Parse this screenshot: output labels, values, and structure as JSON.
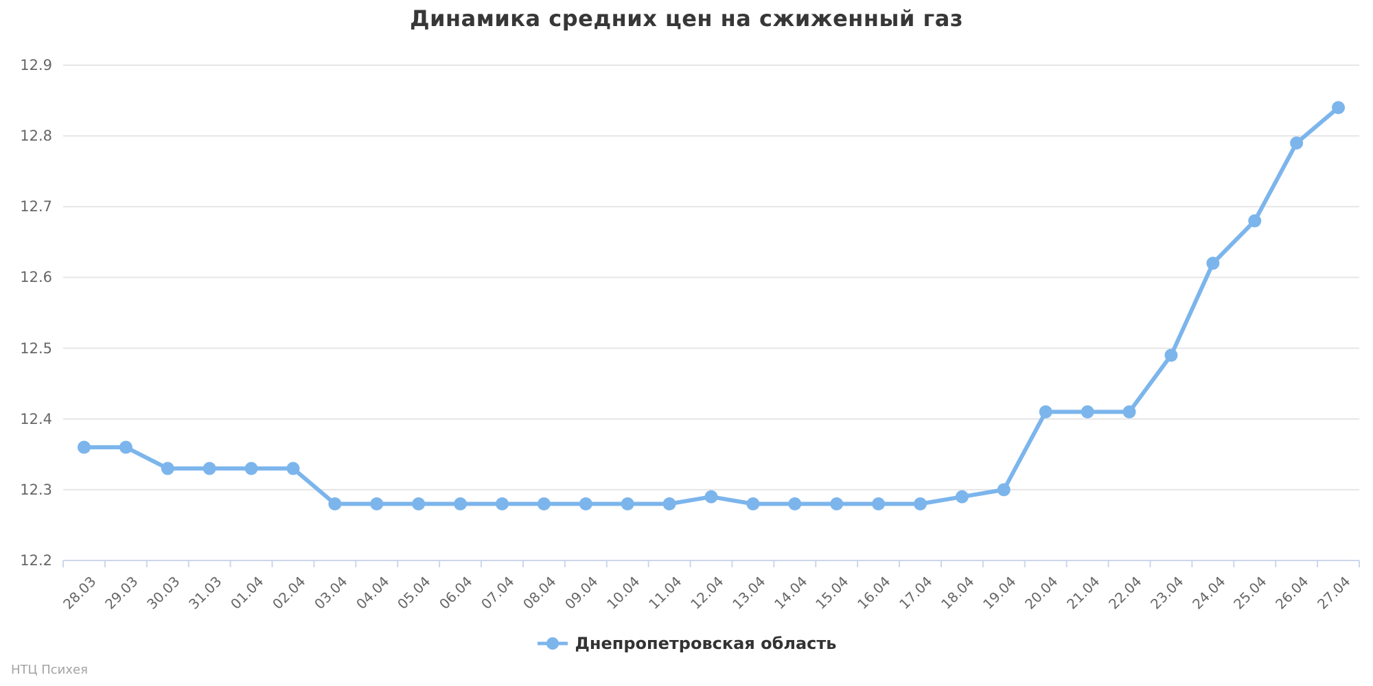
{
  "title": "Динамика средних цен на сжиженный газ",
  "credits": "НТЦ Психея",
  "chart_data": {
    "type": "line",
    "title": "Динамика средних цен на сжиженный газ",
    "xlabel": "",
    "ylabel": "",
    "ylim": [
      12.2,
      12.9
    ],
    "yticks": [
      12.2,
      12.3,
      12.4,
      12.5,
      12.6,
      12.7,
      12.8,
      12.9
    ],
    "grid": true,
    "legend_position": "bottom",
    "categories": [
      "28.03",
      "29.03",
      "30.03",
      "31.03",
      "01.04",
      "02.04",
      "03.04",
      "04.04",
      "05.04",
      "06.04",
      "07.04",
      "08.04",
      "09.04",
      "10.04",
      "11.04",
      "12.04",
      "13.04",
      "14.04",
      "15.04",
      "16.04",
      "17.04",
      "18.04",
      "19.04",
      "20.04",
      "21.04",
      "22.04",
      "23.04",
      "24.04",
      "25.04",
      "26.04",
      "27.04"
    ],
    "series": [
      {
        "name": "Днепропетровская область",
        "color": "#7cb5ec",
        "values": [
          12.36,
          12.36,
          12.33,
          12.33,
          12.33,
          12.33,
          12.28,
          12.28,
          12.28,
          12.28,
          12.28,
          12.28,
          12.28,
          12.28,
          12.28,
          12.29,
          12.28,
          12.28,
          12.28,
          12.28,
          12.28,
          12.29,
          12.3,
          12.41,
          12.41,
          12.41,
          12.49,
          12.62,
          12.68,
          12.79,
          12.84
        ]
      }
    ],
    "colors": {
      "series": "#7cb5ec",
      "grid": "#e6e6e6",
      "axis": "#ccd6eb",
      "tick_label": "#666666",
      "title": "#373737",
      "legend_text": "#333333",
      "credits": "#a3a3a3"
    }
  }
}
